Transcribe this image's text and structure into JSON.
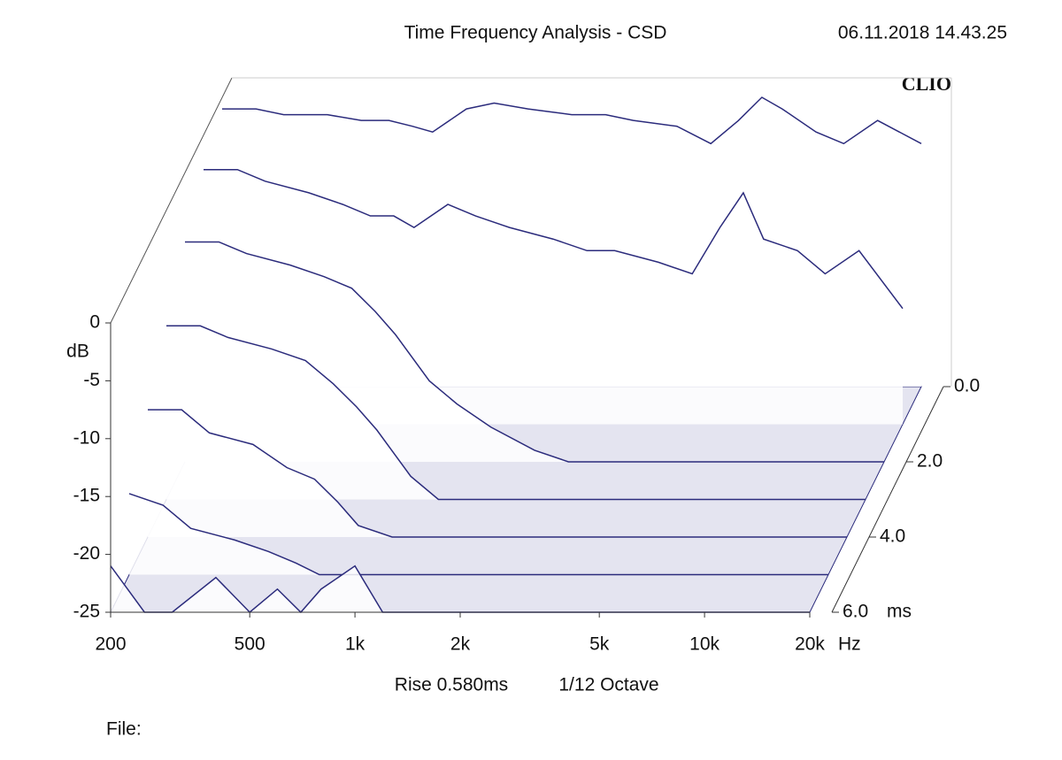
{
  "chart_data": {
    "type": "waterfall",
    "title": "Time Frequency Analysis - CSD",
    "date": "06.11.2018 14.43.25",
    "brand": "CLIO",
    "rise": "Rise 0.580ms",
    "smoothing": "1/12 Octave",
    "file_label": "File:",
    "y_unit": "dB",
    "x_unit": "Hz",
    "t_unit": "ms",
    "color": "#2b2b7c",
    "xscale": "log",
    "xlim": [
      200,
      20000
    ],
    "ylim": [
      -25,
      0
    ],
    "tlim": [
      0,
      6
    ],
    "xticks": [
      200,
      500,
      {
        "value": 1000,
        "label": "1k"
      },
      {
        "value": 2000,
        "label": "2k"
      },
      {
        "value": 5000,
        "label": "5k"
      },
      {
        "value": 10000,
        "label": "10k"
      },
      {
        "value": 20000,
        "label": "20k"
      }
    ],
    "yticks": [
      0,
      -5,
      -10,
      -15,
      -20,
      -25
    ],
    "tticks": [
      {
        "value": 0,
        "label": "0.0"
      },
      {
        "value": 2,
        "label": "2.0"
      },
      {
        "value": 4,
        "label": "4.0"
      },
      {
        "value": 6,
        "label": "6.0"
      }
    ],
    "x": [
      200,
      250,
      300,
      400,
      500,
      600,
      700,
      800,
      1000,
      1200,
      1500,
      2000,
      2500,
      3000,
      4000,
      5000,
      6000,
      7000,
      8000,
      10000,
      12000,
      15000,
      20000
    ],
    "slices": [
      {
        "time": 0,
        "values": [
          -1,
          -1,
          -1.5,
          -1.5,
          -2,
          -2,
          -2.5,
          -3,
          -1,
          -0.5,
          -1,
          -1.5,
          -1.5,
          -2,
          -2.5,
          -4,
          -2,
          0,
          -1,
          -3,
          -4,
          -2,
          -4
        ]
      },
      {
        "time": 1,
        "values": [
          -3,
          -3,
          -4,
          -5,
          -6,
          -7,
          -7,
          -8,
          -6,
          -7,
          -8,
          -9,
          -10,
          -10,
          -11,
          -12,
          -8,
          -5,
          -9,
          -10,
          -12,
          -10,
          -15
        ]
      },
      {
        "time": 2,
        "values": [
          -6,
          -6,
          -7,
          -8,
          -9,
          -10,
          -12,
          -14,
          -18,
          -20,
          -22,
          -24,
          -25,
          -25,
          -25,
          -25,
          -25,
          -25,
          -25,
          -25,
          -25,
          -25,
          -25
        ]
      },
      {
        "time": 3,
        "values": [
          -10,
          -10,
          -11,
          -12,
          -13,
          -15,
          -17,
          -19,
          -23,
          -25,
          -25,
          -25,
          -25,
          -25,
          -25,
          -25,
          -25,
          -25,
          -25,
          -25,
          -25,
          -25,
          -25
        ]
      },
      {
        "time": 4,
        "values": [
          -14,
          -14,
          -16,
          -17,
          -19,
          -20,
          -22,
          -24,
          -25,
          -25,
          -25,
          -25,
          -25,
          -25,
          -25,
          -25,
          -25,
          -25,
          -25,
          -25,
          -25,
          -25,
          -25
        ]
      },
      {
        "time": 5,
        "values": [
          -18,
          -19,
          -21,
          -22,
          -23,
          -24,
          -25,
          -25,
          -25,
          -25,
          -25,
          -25,
          -25,
          -25,
          -25,
          -25,
          -25,
          -25,
          -25,
          -25,
          -25,
          -25,
          -25
        ]
      },
      {
        "time": 6,
        "values": [
          -21,
          -25,
          -25,
          -22,
          -25,
          -23,
          -25,
          -23,
          -21,
          -25,
          -25,
          -25,
          -25,
          -25,
          -25,
          -25,
          -25,
          -25,
          -25,
          -25,
          -25,
          -25,
          -25
        ]
      }
    ]
  }
}
